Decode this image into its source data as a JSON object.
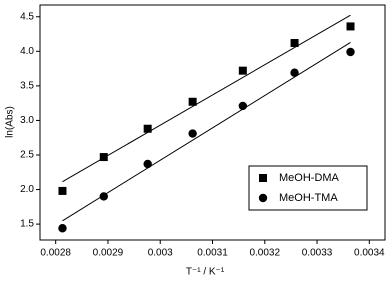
{
  "chart_data": {
    "type": "scatter",
    "x_label": "T⁻¹ / K⁻¹",
    "y_label": "ln(Abs)",
    "series": [
      {
        "name": "MeOH-DMA",
        "color": "#000000",
        "marker": "square",
        "x": [
          0.002813,
          0.002892,
          0.002976,
          0.003062,
          0.003158,
          0.003257,
          0.003364
        ],
        "values": [
          1.98,
          2.47,
          2.88,
          3.27,
          3.72,
          4.12,
          4.36
        ]
      },
      {
        "name": "MeOH-TMA",
        "color": "#000000",
        "marker": "circle",
        "x": [
          0.002813,
          0.002892,
          0.002976,
          0.003062,
          0.003158,
          0.003257,
          0.003364
        ],
        "values": [
          1.44,
          1.9,
          2.37,
          2.81,
          3.21,
          3.69,
          3.99
        ]
      }
    ],
    "fit": true,
    "xlim": [
      0.00277,
      0.00343
    ],
    "xticks": [
      0.0028,
      0.0029,
      0.003,
      0.0031,
      0.0032,
      0.0033,
      0.0034
    ],
    "ylim": [
      1.27,
      4.67
    ],
    "yticks": [
      {
        "value": 1.5,
        "label": "1.5"
      },
      {
        "value": 2,
        "label": "2.0"
      },
      {
        "value": 2.5,
        "label": "2.5"
      },
      {
        "value": 3,
        "label": "3.0"
      },
      {
        "value": 3.5,
        "label": "3.5"
      },
      {
        "value": 4,
        "label": "4.0"
      },
      {
        "value": 4.5,
        "label": "4.5"
      }
    ],
    "legend": "lower right"
  }
}
